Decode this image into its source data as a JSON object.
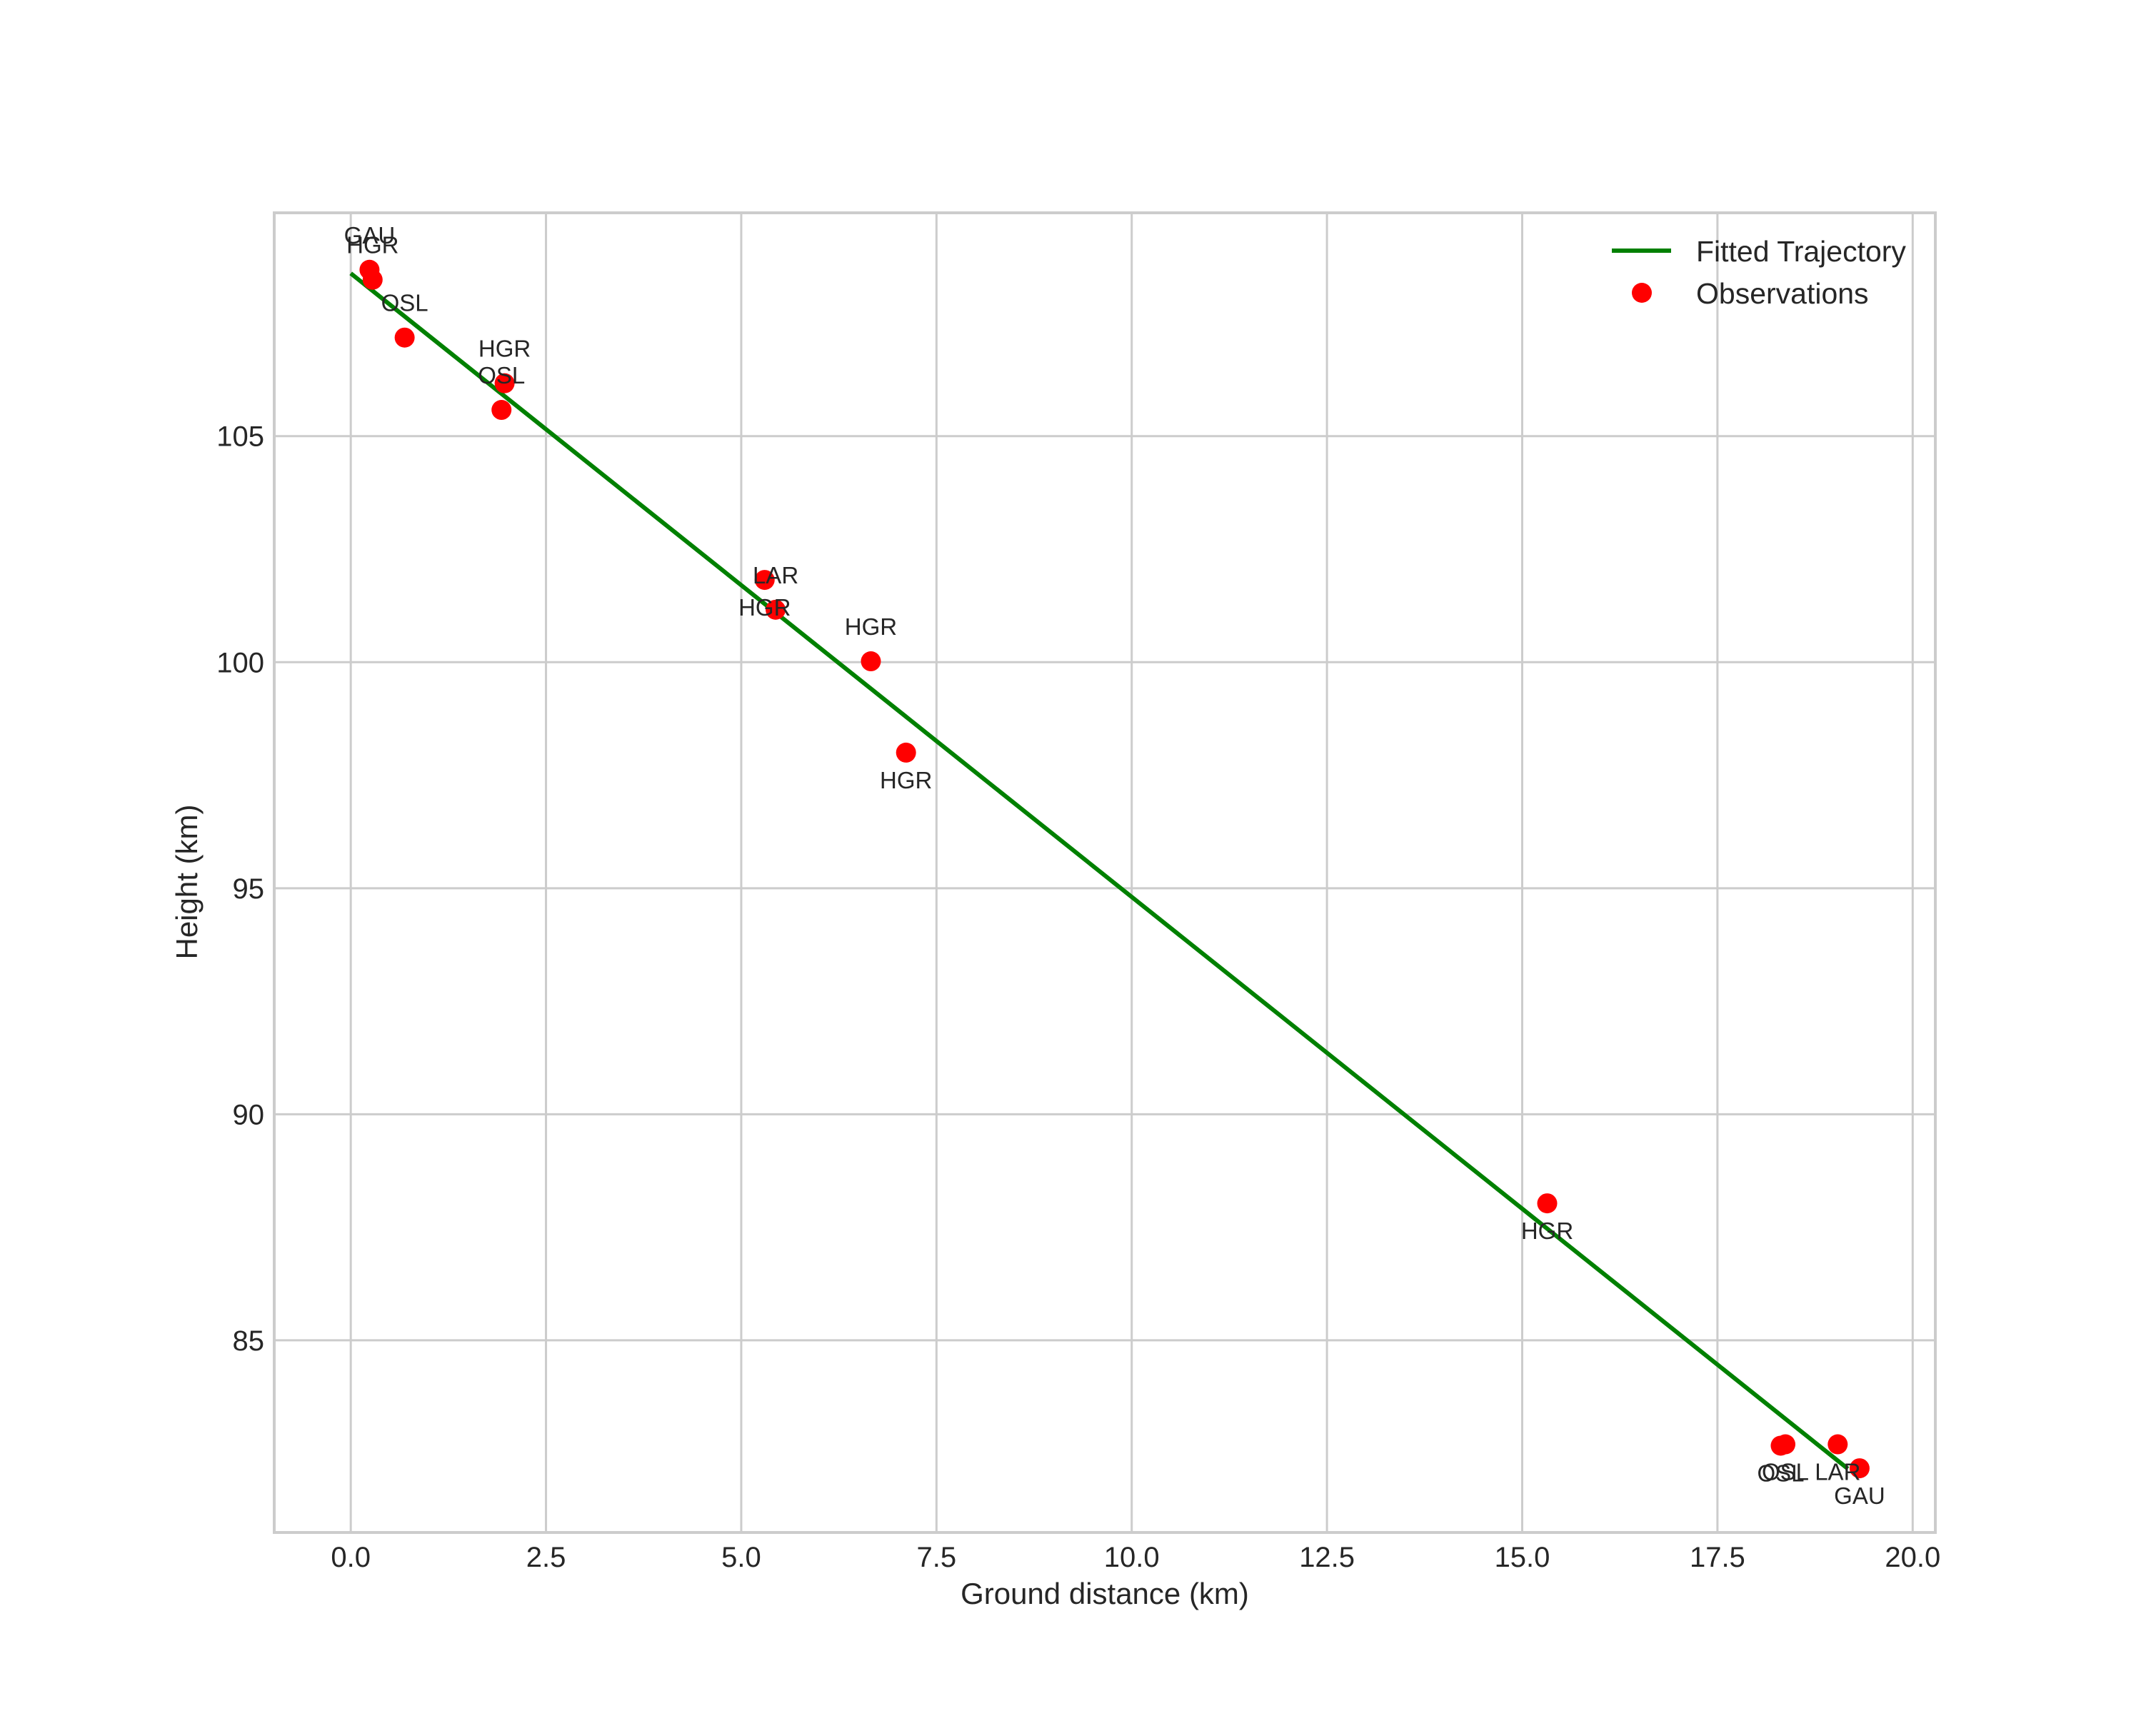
{
  "chart_data": {
    "type": "scatter",
    "title": "",
    "xlabel": "Ground distance (km)",
    "ylabel": "Height (km)",
    "xlim": [
      -0.98,
      20.29
    ],
    "ylim": [
      80.75,
      109.94
    ],
    "grid": true,
    "legend_position": "upper right",
    "x_ticks": [
      0.0,
      2.5,
      5.0,
      7.5,
      10.0,
      12.5,
      15.0,
      17.5,
      20.0
    ],
    "x_tick_labels": [
      "0.0",
      "2.5",
      "5.0",
      "7.5",
      "10.0",
      "12.5",
      "15.0",
      "17.5",
      "20.0"
    ],
    "y_ticks": [
      85,
      90,
      95,
      100,
      105
    ],
    "y_tick_labels": [
      "85",
      "90",
      "95",
      "100",
      "105"
    ],
    "series": [
      {
        "name": "Fitted Trajectory",
        "type": "line",
        "color": "#008000",
        "x": [
          0.0,
          19.17
        ],
        "y": [
          108.6,
          82.16
        ]
      },
      {
        "name": "Observations",
        "type": "scatter",
        "color": "#ff0000",
        "points": [
          {
            "x": 0.24,
            "y": 108.68,
            "label": "GAU",
            "label_pos": "above"
          },
          {
            "x": 0.28,
            "y": 108.46,
            "label": "HGR",
            "label_pos": "above"
          },
          {
            "x": 0.69,
            "y": 107.18,
            "label": "OSL",
            "label_pos": "above"
          },
          {
            "x": 1.97,
            "y": 106.17,
            "label": "HGR",
            "label_pos": "above"
          },
          {
            "x": 1.93,
            "y": 105.58,
            "label": "OSL",
            "label_pos": "above"
          },
          {
            "x": 5.3,
            "y": 101.82,
            "label": "HGR",
            "label_pos": "below"
          },
          {
            "x": 5.44,
            "y": 101.16,
            "label": "LAR",
            "label_pos": "above"
          },
          {
            "x": 6.66,
            "y": 100.02,
            "label": "HGR",
            "label_pos": "above"
          },
          {
            "x": 7.11,
            "y": 98.0,
            "label": "HGR",
            "label_pos": "below"
          },
          {
            "x": 15.32,
            "y": 88.03,
            "label": "HGR",
            "label_pos": "below"
          },
          {
            "x": 18.31,
            "y": 82.67,
            "label": "OSL",
            "label_pos": "below"
          },
          {
            "x": 18.37,
            "y": 82.7,
            "label": "OSL",
            "label_pos": "below"
          },
          {
            "x": 19.04,
            "y": 82.7,
            "label": "LAR",
            "label_pos": "below"
          },
          {
            "x": 19.32,
            "y": 82.17,
            "label": "GAU",
            "label_pos": "below"
          }
        ]
      }
    ]
  },
  "legend": {
    "items": [
      {
        "label": "Fitted Trajectory",
        "marker": "line",
        "color": "#008000"
      },
      {
        "label": "Observations",
        "marker": "dot",
        "color": "#ff0000"
      }
    ]
  },
  "style": {
    "grid_color": "#cccccc",
    "text_color": "#262626",
    "background": "#ffffff"
  }
}
